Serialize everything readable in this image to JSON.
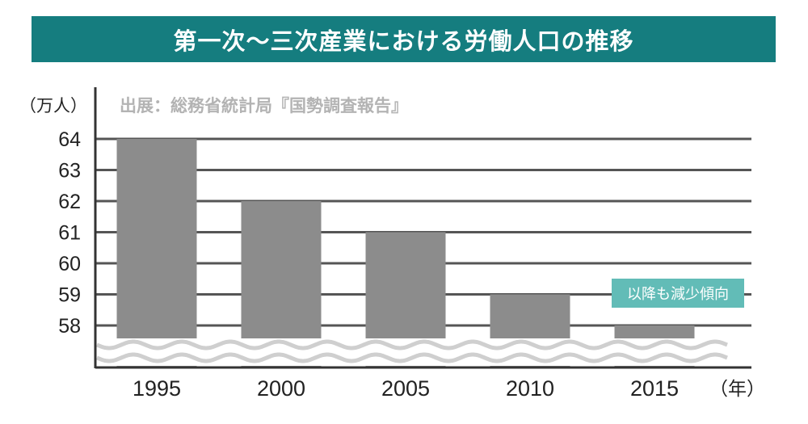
{
  "title": "第一次～三次産業における労働人口の推移",
  "colors": {
    "title_background": "#157d7f",
    "bar": "#8c8c8c",
    "gridline": "#555555",
    "annotation_background": "#62bcb7",
    "annotation_text": "#ffffff",
    "source_text": "#b3b3b3",
    "axis_text": "#222222",
    "break_wave": "#cfcfcf"
  },
  "chart_data": {
    "type": "bar",
    "source": "出展：総務省統計局『国勢調査報告』",
    "y_unit_label": "（万人）",
    "x_unit_label": "（年）",
    "categories": [
      "1995",
      "2000",
      "2005",
      "2010",
      "2015"
    ],
    "values": [
      64,
      62,
      61,
      59,
      58
    ],
    "ylim": [
      58,
      64
    ],
    "yticks": [
      64,
      63,
      62,
      61,
      60,
      59,
      58
    ],
    "grid": true,
    "axis_break": true,
    "annotation": "以降も減少傾向"
  }
}
